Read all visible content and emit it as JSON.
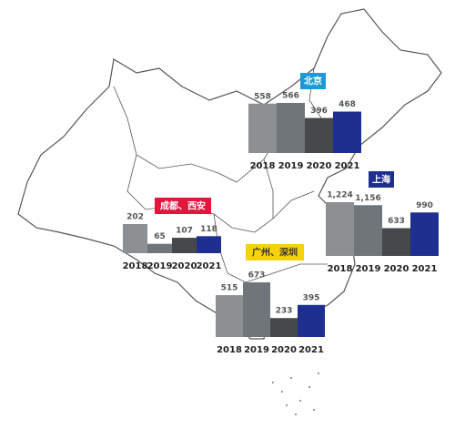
{
  "chart_data": [
    {
      "type": "bar",
      "title": "北京",
      "title_color": "#1a9bd7",
      "title_text_color": "#ffffff",
      "categories": [
        "2018",
        "2019",
        "2020",
        "2021"
      ],
      "values": [
        558,
        566,
        396,
        468
      ],
      "colors": [
        "#8c9093",
        "#6f7578",
        "#45494c",
        "#1f2f8f"
      ]
    },
    {
      "type": "bar",
      "title": "上海",
      "title_color": "#1f2f8f",
      "title_text_color": "#ffffff",
      "categories": [
        "2018",
        "2019",
        "2020",
        "2021"
      ],
      "values": [
        1224,
        1156,
        633,
        990
      ],
      "value_labels": [
        "1,224",
        "1,156",
        "633",
        "990"
      ],
      "colors": [
        "#8c9093",
        "#6f7578",
        "#45494c",
        "#1f2f8f"
      ]
    },
    {
      "type": "bar",
      "title": "成都、西安",
      "title_color": "#e3173e",
      "title_text_color": "#ffffff",
      "categories": [
        "2018",
        "2019",
        "2020",
        "2021"
      ],
      "values": [
        202,
        65,
        107,
        118
      ],
      "colors": [
        "#8c9093",
        "#6f7578",
        "#45494c",
        "#1f2f8f"
      ]
    },
    {
      "type": "bar",
      "title": "广州、深圳",
      "title_color": "#f5d20a",
      "title_text_color": "#333333",
      "categories": [
        "2018",
        "2019",
        "2020",
        "2021"
      ],
      "values": [
        515,
        673,
        233,
        395
      ],
      "colors": [
        "#8c9093",
        "#6f7578",
        "#45494c",
        "#1f2f8f"
      ]
    }
  ]
}
